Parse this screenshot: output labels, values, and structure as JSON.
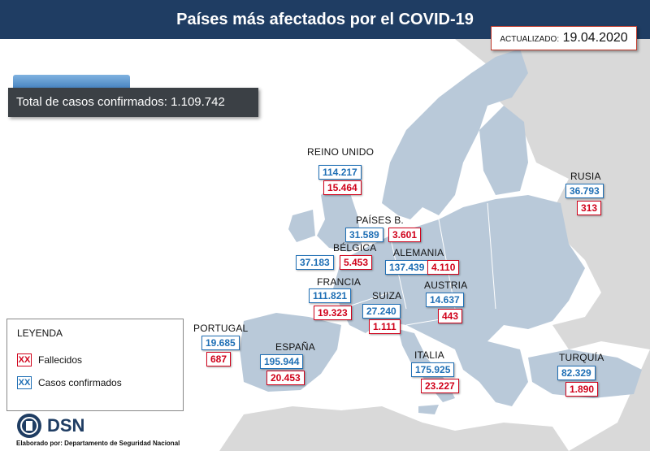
{
  "header": {
    "title": "Países más afectados por el COVID-19"
  },
  "updated": {
    "label": "ACTUALIZADO:",
    "date": "19.04.2020"
  },
  "total": {
    "label": "Total de casos confirmados: 1.109.742"
  },
  "countries": {
    "reino_unido": {
      "name": "REINO UNIDO",
      "confirmed": "114.217",
      "deaths": "15.464"
    },
    "rusia": {
      "name": "RUSIA",
      "confirmed": "36.793",
      "deaths": "313"
    },
    "paises_bajos": {
      "name": "PAÍSES B.",
      "confirmed": "31.589",
      "deaths": "3.601"
    },
    "belgica": {
      "name": "BÉLGICA",
      "confirmed": "37.183",
      "deaths": "5.453"
    },
    "alemania": {
      "name": "ALEMANIA",
      "confirmed": "137.439",
      "deaths": "4.110"
    },
    "francia": {
      "name": "FRANCIA",
      "confirmed": "111.821",
      "deaths": "19.323"
    },
    "suiza": {
      "name": "SUIZA",
      "confirmed": "27.240",
      "deaths": "1.111"
    },
    "austria": {
      "name": "AUSTRIA",
      "confirmed": "14.637",
      "deaths": "443"
    },
    "portugal": {
      "name": "PORTUGAL",
      "confirmed": "19.685",
      "deaths": "687"
    },
    "espana": {
      "name": "ESPAÑA",
      "confirmed": "195.944",
      "deaths": "20.453"
    },
    "italia": {
      "name": "ITALIA",
      "confirmed": "175.925",
      "deaths": "23.227"
    },
    "turquia": {
      "name": "TURQUÍA",
      "confirmed": "82.329",
      "deaths": "1.890"
    }
  },
  "legend": {
    "title": "LEYENDA",
    "marker": "XX",
    "deaths_label": "Fallecidos",
    "confirmed_label": "Casos confirmados"
  },
  "colors": {
    "confirmed": "#1f6fb5",
    "deaths": "#d0021b",
    "land": "#b9c9d9",
    "other_land": "#d9d9d9",
    "sea": "#ffffff",
    "header": "#1f3d63"
  },
  "footer": {
    "logo": "DSN",
    "credit": "Elaborado por: Departamento de Seguridad Nacional"
  }
}
